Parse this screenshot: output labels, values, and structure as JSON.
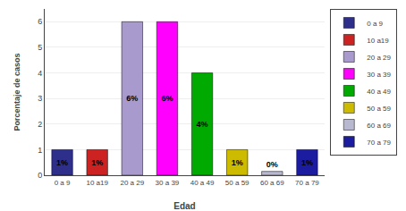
{
  "chart_data": {
    "type": "bar",
    "categories": [
      "0 a 9",
      "10 a19",
      "20 a 29",
      "30 a 39",
      "40 a 49",
      "50 a 59",
      "60 a 69",
      "70 a 79"
    ],
    "values": [
      1,
      1,
      6,
      6,
      4,
      1,
      0.15,
      1
    ],
    "value_labels": [
      "1%",
      "1%",
      "6%",
      "6%",
      "4%",
      "1%",
      "0%",
      "1%"
    ],
    "colors": [
      "#2E2E8B",
      "#CC2222",
      "#A89ACC",
      "#FF00FF",
      "#00AA00",
      "#CCBB00",
      "#B8B8D0",
      "#1C1CA0"
    ],
    "xlabel": "Edad",
    "ylabel": "Porcentaje de casos",
    "ylim": [
      0,
      6.5
    ],
    "yticks": [
      0,
      1,
      2,
      3,
      4,
      5,
      6
    ],
    "grid": true,
    "legend": "upper right",
    "data_labels": true
  }
}
